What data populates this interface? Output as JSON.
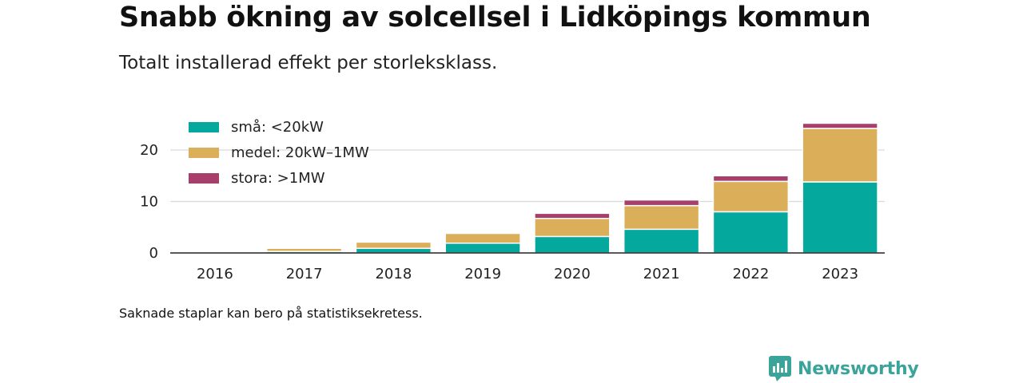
{
  "header": {
    "title": "Snabb ökning av solcellsel i Lidköpings kommun",
    "subtitle": "Totalt installerad effekt per storleksklass."
  },
  "footer": {
    "note": "Saknade staplar kan bero på statistiksekretess.",
    "brand": "Newsworthy"
  },
  "colors": {
    "small": "#05a89d",
    "medium": "#dbae5a",
    "large": "#a83e6b",
    "brand": "#3aa39a"
  },
  "chart_data": {
    "type": "bar",
    "stacked": true,
    "title": "Snabb ökning av solcellsel i Lidköpings kommun",
    "subtitle": "Totalt installerad effekt per storleksklass.",
    "categories": [
      "2016",
      "2017",
      "2018",
      "2019",
      "2020",
      "2021",
      "2022",
      "2023"
    ],
    "series": [
      {
        "name": "små: <20kW",
        "color": "#05a89d",
        "values": [
          0.1,
          0.3,
          0.9,
          1.9,
          3.2,
          4.6,
          8.0,
          13.8
        ]
      },
      {
        "name": "medel: 20kW–1MW",
        "color": "#dbae5a",
        "values": [
          0.05,
          0.6,
          1.2,
          1.9,
          3.5,
          4.6,
          5.9,
          10.4
        ]
      },
      {
        "name": "stora: >1MW",
        "color": "#a83e6b",
        "values": [
          0,
          0,
          0,
          0,
          1.0,
          1.1,
          1.1,
          1.0
        ]
      }
    ],
    "yticks": [
      0,
      10,
      20
    ],
    "ylim": [
      0,
      26
    ],
    "grid": true,
    "legend": "top-left"
  }
}
